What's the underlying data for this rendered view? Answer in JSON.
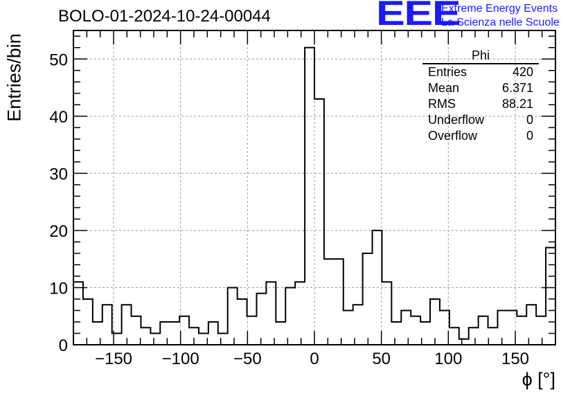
{
  "title": "BOLO-01-2024-10-24-00044",
  "logo": {
    "mark": "EEE",
    "line1": "Extreme Energy Events",
    "line2": "La Scienza nelle Scuole",
    "color": "#1a1aff"
  },
  "stats_box": {
    "title": "Phi",
    "rows": [
      {
        "label": "Entries",
        "value": "420"
      },
      {
        "label": "Mean",
        "value": "6.371"
      },
      {
        "label": "RMS",
        "value": "88.21"
      },
      {
        "label": "Underflow",
        "value": "0"
      },
      {
        "label": "Overflow",
        "value": "0"
      }
    ]
  },
  "chart_data": {
    "type": "bar",
    "style": "step-histogram",
    "title": "BOLO-01-2024-10-24-00044",
    "xlabel": "ϕ [°]",
    "ylabel": "Entries/bin",
    "xlim": [
      -180,
      180
    ],
    "ylim": [
      0,
      55
    ],
    "bin_width": 7.2,
    "xticks": [
      -150,
      -100,
      -50,
      0,
      50,
      100,
      150
    ],
    "yticks": [
      0,
      10,
      20,
      30,
      40,
      50
    ],
    "grid": true,
    "line_color": "#000000",
    "values": [
      11,
      8,
      4,
      7,
      2,
      7,
      5,
      3,
      2,
      4,
      4,
      5,
      3,
      2,
      4,
      2,
      10,
      8,
      5,
      9,
      11,
      4,
      10,
      11,
      52,
      43,
      15,
      15,
      6,
      7,
      16,
      20,
      11,
      4,
      6,
      5,
      4,
      8,
      6,
      3,
      1,
      3,
      5,
      3,
      6,
      6,
      5,
      7,
      5,
      17
    ]
  }
}
